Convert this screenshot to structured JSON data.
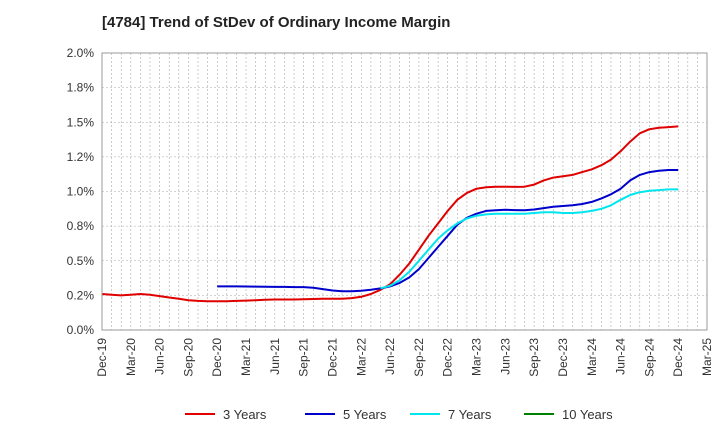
{
  "chart_data": {
    "type": "line",
    "title": "[4784]  Trend of StDev of Ordinary Income Margin",
    "xlabel": "",
    "ylabel": "",
    "x_ticks": [
      "Dec-19",
      "Mar-20",
      "Jun-20",
      "Sep-20",
      "Dec-20",
      "Mar-21",
      "Jun-21",
      "Sep-21",
      "Dec-21",
      "Mar-22",
      "Jun-22",
      "Sep-22",
      "Dec-22",
      "Mar-23",
      "Jun-23",
      "Sep-23",
      "Dec-23",
      "Mar-24",
      "Jun-24",
      "Sep-24",
      "Dec-24",
      "Mar-25"
    ],
    "y_ticks": [
      "0.0%",
      "0.2%",
      "0.5%",
      "0.8%",
      "1.0%",
      "1.2%",
      "1.5%",
      "1.8%",
      "2.0%"
    ],
    "ylim": [
      0,
      2.0
    ],
    "grid": true,
    "legend_position": "bottom",
    "series": [
      {
        "name": "3 Years",
        "color": "#e00000",
        "x": [
          "Dec-19",
          "Jan-20",
          "Feb-20",
          "Mar-20",
          "Apr-20",
          "May-20",
          "Jun-20",
          "Jul-20",
          "Aug-20",
          "Sep-20",
          "Oct-20",
          "Nov-20",
          "Dec-20",
          "Jan-21",
          "Feb-21",
          "Mar-21",
          "Apr-21",
          "May-21",
          "Jun-21",
          "Jul-21",
          "Aug-21",
          "Sep-21",
          "Oct-21",
          "Nov-21",
          "Dec-21",
          "Jan-22",
          "Feb-22",
          "Mar-22",
          "Apr-22",
          "May-22",
          "Jun-22",
          "Jul-22",
          "Aug-22",
          "Sep-22",
          "Oct-22",
          "Nov-22",
          "Dec-22",
          "Jan-23",
          "Feb-23",
          "Mar-23",
          "Apr-23",
          "May-23",
          "Jun-23",
          "Jul-23",
          "Aug-23",
          "Sep-23",
          "Oct-23",
          "Nov-23",
          "Dec-23",
          "Jan-24",
          "Feb-24",
          "Mar-24",
          "Apr-24",
          "May-24",
          "Jun-24",
          "Jul-24",
          "Aug-24",
          "Sep-24",
          "Oct-24",
          "Nov-24",
          "Dec-24"
        ],
        "values": [
          0.26,
          0.255,
          0.25,
          0.255,
          0.26,
          0.255,
          0.245,
          0.235,
          0.225,
          0.215,
          0.21,
          0.208,
          0.208,
          0.208,
          0.21,
          0.212,
          0.215,
          0.218,
          0.22,
          0.22,
          0.22,
          0.222,
          0.224,
          0.225,
          0.225,
          0.225,
          0.23,
          0.24,
          0.26,
          0.29,
          0.33,
          0.4,
          0.48,
          0.58,
          0.68,
          0.77,
          0.86,
          0.94,
          0.99,
          1.02,
          1.03,
          1.035,
          1.035,
          1.033,
          1.035,
          1.05,
          1.08,
          1.1,
          1.11,
          1.12,
          1.14,
          1.16,
          1.19,
          1.23,
          1.29,
          1.36,
          1.42,
          1.45,
          1.46,
          1.465,
          1.47
        ]
      },
      {
        "name": "5 Years",
        "color": "#0000cc",
        "x": [
          "Dec-20",
          "Jan-21",
          "Feb-21",
          "Mar-21",
          "Apr-21",
          "May-21",
          "Jun-21",
          "Jul-21",
          "Aug-21",
          "Sep-21",
          "Oct-21",
          "Nov-21",
          "Dec-21",
          "Jan-22",
          "Feb-22",
          "Mar-22",
          "Apr-22",
          "May-22",
          "Jun-22",
          "Jul-22",
          "Aug-22",
          "Sep-22",
          "Oct-22",
          "Nov-22",
          "Dec-22",
          "Jan-23",
          "Feb-23",
          "Mar-23",
          "Apr-23",
          "May-23",
          "Jun-23",
          "Jul-23",
          "Aug-23",
          "Sep-23",
          "Oct-23",
          "Nov-23",
          "Dec-23",
          "Jan-24",
          "Feb-24",
          "Mar-24",
          "Apr-24",
          "May-24",
          "Jun-24",
          "Jul-24",
          "Aug-24",
          "Sep-24",
          "Oct-24",
          "Nov-24",
          "Dec-24"
        ],
        "values": [
          0.315,
          0.315,
          0.315,
          0.314,
          0.313,
          0.312,
          0.311,
          0.311,
          0.31,
          0.31,
          0.305,
          0.295,
          0.285,
          0.28,
          0.28,
          0.283,
          0.29,
          0.3,
          0.315,
          0.34,
          0.38,
          0.44,
          0.52,
          0.6,
          0.68,
          0.76,
          0.81,
          0.84,
          0.86,
          0.865,
          0.868,
          0.866,
          0.865,
          0.87,
          0.88,
          0.89,
          0.895,
          0.9,
          0.91,
          0.925,
          0.95,
          0.98,
          1.02,
          1.08,
          1.12,
          1.14,
          1.15,
          1.155,
          1.155
        ]
      },
      {
        "name": "7 Years",
        "color": "#00e5ee",
        "x": [
          "May-22",
          "Jun-22",
          "Jul-22",
          "Aug-22",
          "Sep-22",
          "Oct-22",
          "Nov-22",
          "Dec-22",
          "Jan-23",
          "Feb-23",
          "Mar-23",
          "Apr-23",
          "May-23",
          "Jun-23",
          "Jul-23",
          "Aug-23",
          "Sep-23",
          "Oct-23",
          "Nov-23",
          "Dec-23",
          "Jan-24",
          "Feb-24",
          "Mar-24",
          "Apr-24",
          "May-24",
          "Jun-24",
          "Jul-24",
          "Aug-24",
          "Sep-24",
          "Oct-24",
          "Nov-24",
          "Dec-24"
        ],
        "values": [
          0.3,
          0.32,
          0.36,
          0.42,
          0.5,
          0.58,
          0.66,
          0.72,
          0.77,
          0.805,
          0.825,
          0.835,
          0.84,
          0.84,
          0.84,
          0.84,
          0.845,
          0.85,
          0.85,
          0.845,
          0.845,
          0.85,
          0.86,
          0.875,
          0.9,
          0.94,
          0.975,
          0.995,
          1.005,
          1.01,
          1.015,
          1.015
        ]
      },
      {
        "name": "10 Years",
        "color": "#008000",
        "x": [],
        "values": []
      }
    ]
  }
}
